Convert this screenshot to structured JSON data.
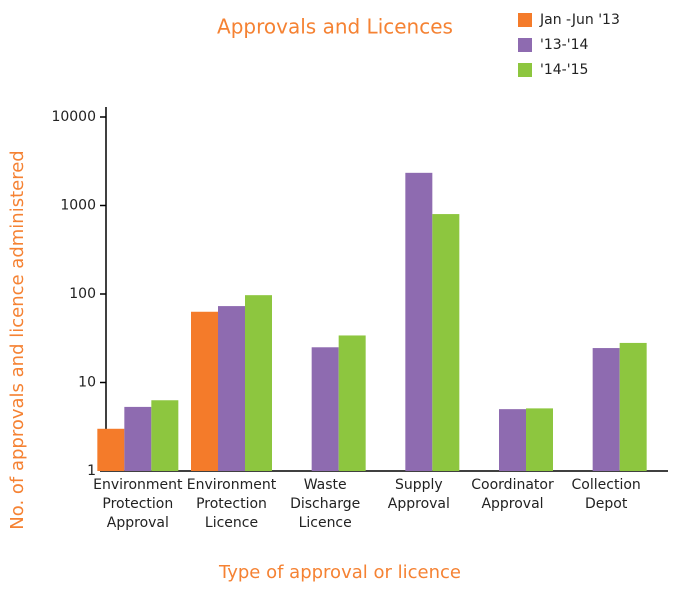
{
  "chart_data": {
    "type": "bar",
    "title": "Approvals and Licences",
    "x_label": "Type of approval or licence",
    "y_label": "No. of approvals and licence administered",
    "categories": [
      [
        "Environment",
        "Protection",
        "Approval"
      ],
      [
        "Environment",
        "Protection",
        "Licence"
      ],
      [
        "Waste",
        "Discharge",
        "Licence"
      ],
      [
        "Supply",
        "Approval"
      ],
      [
        "Coordinator",
        "Approval"
      ],
      [
        "Collection",
        "Depot"
      ]
    ],
    "series": [
      {
        "name": "Jan -Jun '13",
        "color": "#f47b2a",
        "values": [
          3.0,
          63,
          null,
          null,
          null,
          null
        ]
      },
      {
        "name": "'13-'14",
        "color": "#8e6bb0",
        "values": [
          5.3,
          73,
          25,
          2340,
          5.0,
          24.5
        ]
      },
      {
        "name": "'14-'15",
        "color": "#8dc63f",
        "values": [
          6.3,
          97,
          34,
          800,
          5.1,
          28
        ]
      }
    ],
    "log_scale": true,
    "ylim": [
      1,
      10000
    ],
    "yticks": [
      1,
      10,
      100,
      1000,
      10000
    ],
    "legend": "top-right"
  }
}
